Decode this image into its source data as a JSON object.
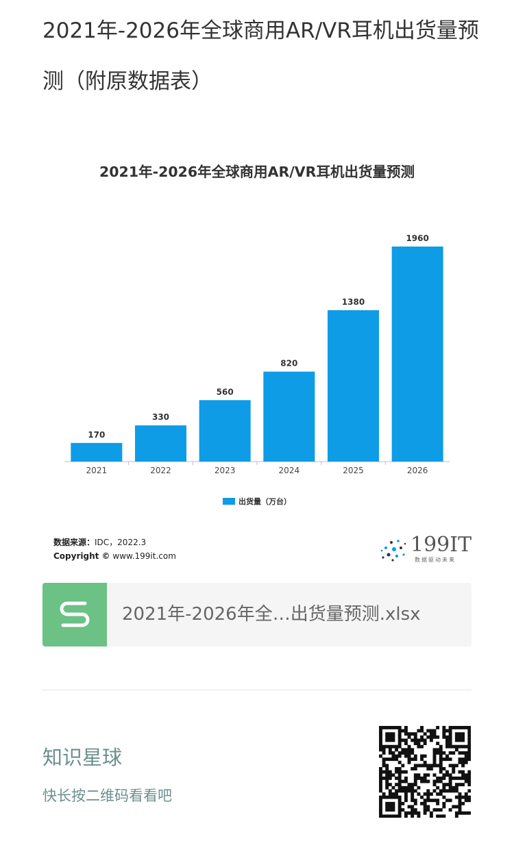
{
  "article_title": "2021年-2026年全球商用AR/VR耳机出货量预测（附原数据表）",
  "chart_data": {
    "type": "bar",
    "title": "2021年-2026年全球商用AR/VR耳机出货量预测",
    "categories": [
      "2021",
      "2022",
      "2023",
      "2024",
      "2025",
      "2026"
    ],
    "series": [
      {
        "name": "出货量（万台）",
        "values": [
          170,
          330,
          560,
          820,
          1380,
          1960
        ],
        "color": "#0e9ce6"
      }
    ],
    "data_labels": [
      "170",
      "330",
      "560",
      "820",
      "1380",
      "1960"
    ],
    "legend_position": "bottom",
    "grid": false
  },
  "source": {
    "label": "数据来源：",
    "value": "IDC，2022.3",
    "copyright_label": "Copyright ©",
    "copyright_value": "www.199it.com"
  },
  "logo": {
    "text": "199IT",
    "subtitle": "数据驱动未来"
  },
  "file_card": {
    "icon": "s-icon",
    "name": "2021年-2026年全…出货量预测.xlsx"
  },
  "promo": {
    "title": "知识星球",
    "subtitle": "快长按二维码看看吧",
    "qr_icon": "qr-code-icon"
  },
  "colors": {
    "accent": "#0e9ce6",
    "file_icon": "#6cc185",
    "promo_text": "#6c8f8e"
  }
}
